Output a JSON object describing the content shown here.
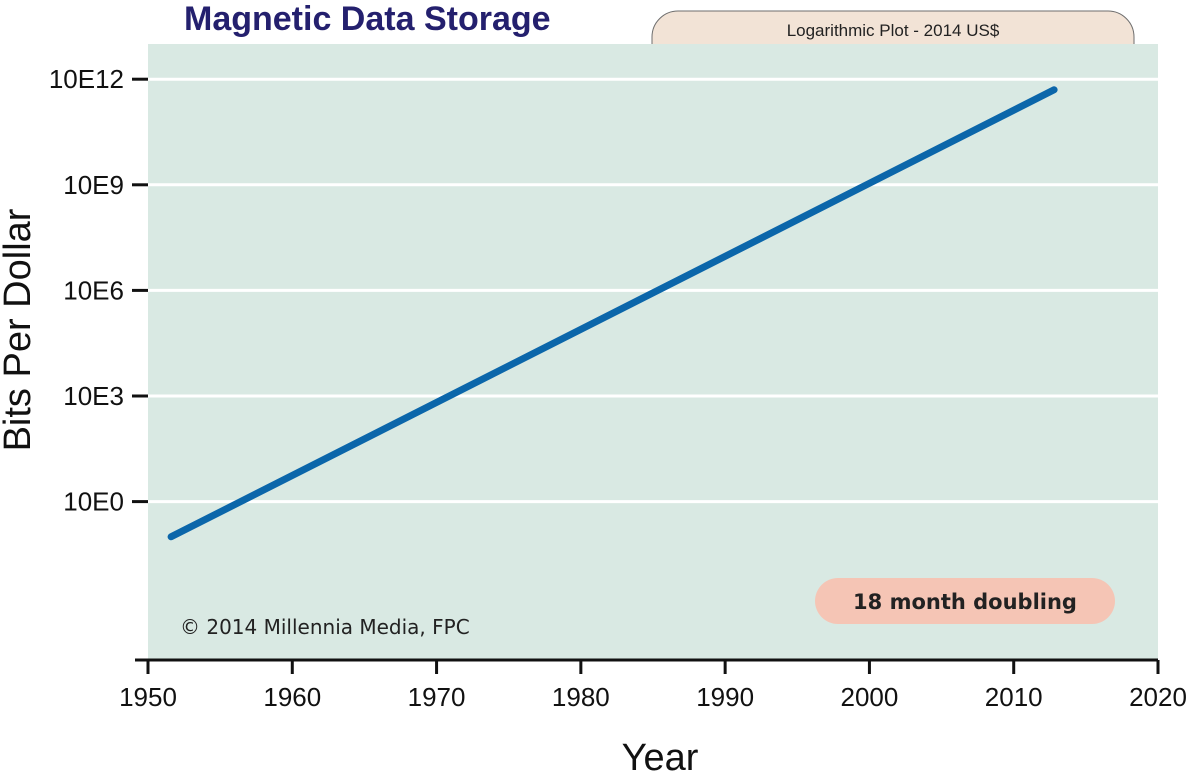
{
  "chart_data": {
    "type": "line",
    "title": "Magnetic Data Storage",
    "subtitle": "Logarithmic Plot - 2014 US$",
    "xlabel": "Year",
    "ylabel": "Bits Per Dollar",
    "xlim": [
      1950,
      2020
    ],
    "ylim_log10": [
      -4.5,
      13
    ],
    "x_ticks": [
      1950,
      1960,
      1970,
      1980,
      1990,
      2000,
      2010,
      2020
    ],
    "y_ticks": [
      {
        "log10": 0,
        "label": "10E0"
      },
      {
        "log10": 3,
        "label": "10E3"
      },
      {
        "log10": 6,
        "label": "10E6"
      },
      {
        "log10": 9,
        "label": "10E9"
      },
      {
        "log10": 12,
        "label": "10E12"
      }
    ],
    "grid": "horizontal",
    "series": [
      {
        "name": "Bits Per Dollar",
        "color": "#0b66aa",
        "x": [
          1951.6,
          2012.8
        ],
        "log10_y": [
          -1.0,
          11.7
        ]
      }
    ],
    "annotations": {
      "doubling": "18 month doubling",
      "copyright": "© 2014 Millennia Media, FPC"
    },
    "colors": {
      "plot_background": "#d9e9e3",
      "subtitle_background": "#f2e3d6",
      "badge_background": "#f5c5b5",
      "title_color": "#24206e",
      "line_color": "#0b66aa"
    }
  }
}
